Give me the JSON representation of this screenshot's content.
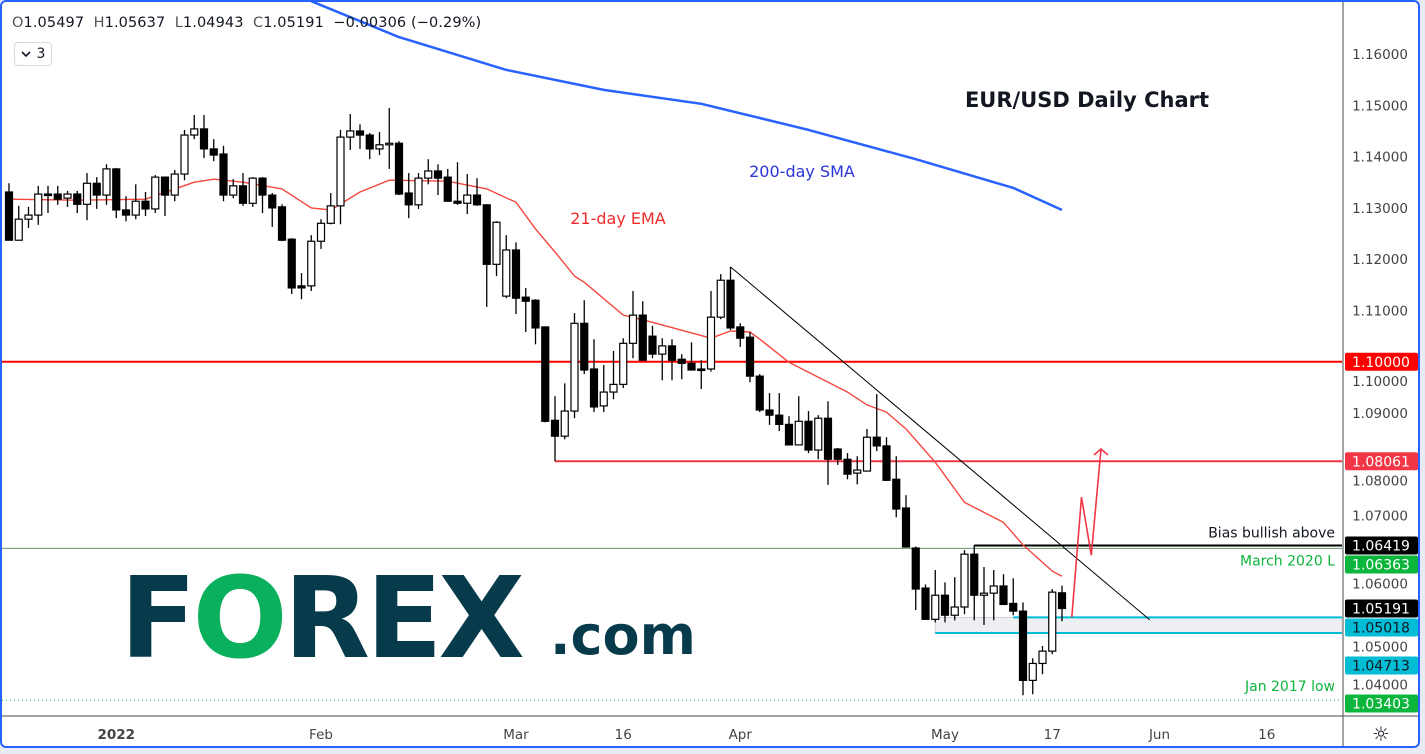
{
  "legend": {
    "open_label": "O",
    "open": "1.05497",
    "high_label": "H",
    "high": "1.05637",
    "low_label": "L",
    "low": "1.04943",
    "close_label": "C",
    "close": "1.05191",
    "change": "−0.00306 (−0.29%)"
  },
  "indicators_toggle": {
    "icon": "chevron-down-icon",
    "count": "3"
  },
  "settings_icon": "gear-icon",
  "logo": {
    "text_left": "F",
    "text_o": "O",
    "text_right": "REX",
    "suffix": ".com",
    "dark_color": "#073b4c",
    "green_color": "#0ab05c"
  },
  "chart_data": {
    "type": "candlestick",
    "title": "EUR/USD Daily Chart",
    "ylim": [
      1.03,
      1.17
    ],
    "y_ticks": [
      "1.04000",
      "1.05000",
      "1.06000",
      "1.07000",
      "1.08000",
      "1.09000",
      "1.10000",
      "1.11000",
      "1.12000",
      "1.13000",
      "1.14000",
      "1.15000",
      "1.16000"
    ],
    "x_ticks": [
      {
        "label": "2022",
        "date": "2022-01-03"
      },
      {
        "label": "Feb",
        "date": "2022-02-01"
      },
      {
        "label": "Mar",
        "date": "2022-03-01"
      },
      {
        "label": "16",
        "date": "2022-03-16"
      },
      {
        "label": "Apr",
        "date": "2022-04-01"
      },
      {
        "label": "May",
        "date": "2022-05-02"
      },
      {
        "label": "17",
        "date": "2022-05-17"
      },
      {
        "label": "Jun",
        "date": "2022-06-01"
      },
      {
        "label": "16",
        "date": "2022-06-16"
      }
    ],
    "up_color": "#ffffff",
    "down_color": "#000000",
    "candles_columns": [
      "date",
      "open",
      "high",
      "low",
      "close"
    ],
    "candles": [
      [
        "2021-12-17",
        1.1331,
        1.1348,
        1.1237,
        1.1237
      ],
      [
        "2021-12-20",
        1.1237,
        1.1304,
        1.1237,
        1.1278
      ],
      [
        "2021-12-21",
        1.1278,
        1.1302,
        1.1261,
        1.1286
      ],
      [
        "2021-12-22",
        1.1286,
        1.1343,
        1.1267,
        1.1327
      ],
      [
        "2021-12-23",
        1.1327,
        1.1343,
        1.129,
        1.1326
      ],
      [
        "2021-12-24",
        1.1327,
        1.1343,
        1.1306,
        1.1317
      ],
      [
        "2021-12-27",
        1.1319,
        1.1333,
        1.1302,
        1.1327
      ],
      [
        "2021-12-28",
        1.1327,
        1.1333,
        1.129,
        1.1307
      ],
      [
        "2021-12-29",
        1.1307,
        1.1368,
        1.1276,
        1.1348
      ],
      [
        "2021-12-30",
        1.1348,
        1.136,
        1.1298,
        1.1325
      ],
      [
        "2021-12-31",
        1.1325,
        1.1385,
        1.1306,
        1.1376
      ],
      [
        "2022-01-03",
        1.1376,
        1.1378,
        1.128,
        1.1296
      ],
      [
        "2022-01-04",
        1.1296,
        1.1323,
        1.1274,
        1.1286
      ],
      [
        "2022-01-05",
        1.1286,
        1.1346,
        1.1278,
        1.1313
      ],
      [
        "2022-01-06",
        1.1313,
        1.1331,
        1.1284,
        1.1298
      ],
      [
        "2022-01-07",
        1.1298,
        1.1364,
        1.129,
        1.136
      ],
      [
        "2022-01-10",
        1.136,
        1.1361,
        1.1284,
        1.1325
      ],
      [
        "2022-01-11",
        1.1325,
        1.1374,
        1.1313,
        1.1366
      ],
      [
        "2022-01-12",
        1.1366,
        1.1452,
        1.1354,
        1.1442
      ],
      [
        "2022-01-13",
        1.1442,
        1.1481,
        1.1434,
        1.1454
      ],
      [
        "2022-01-14",
        1.1454,
        1.1481,
        1.1397,
        1.1415
      ],
      [
        "2022-01-17",
        1.1415,
        1.1434,
        1.1391,
        1.1403
      ],
      [
        "2022-01-18",
        1.1405,
        1.1421,
        1.1313,
        1.1325
      ],
      [
        "2022-01-19",
        1.1325,
        1.1356,
        1.1319,
        1.1343
      ],
      [
        "2022-01-20",
        1.1343,
        1.1368,
        1.1304,
        1.1309
      ],
      [
        "2022-01-21",
        1.1309,
        1.136,
        1.1302,
        1.1358
      ],
      [
        "2022-01-24",
        1.1358,
        1.136,
        1.129,
        1.1325
      ],
      [
        "2022-01-25",
        1.1325,
        1.1329,
        1.1263,
        1.13
      ],
      [
        "2022-01-26",
        1.1302,
        1.1307,
        1.1235,
        1.1237
      ],
      [
        "2022-01-27",
        1.1239,
        1.1241,
        1.1132,
        1.1144
      ],
      [
        "2022-01-28",
        1.1148,
        1.1173,
        1.1122,
        1.1144
      ],
      [
        "2022-01-31",
        1.1148,
        1.1247,
        1.1138,
        1.1235
      ],
      [
        "2022-02-01",
        1.1235,
        1.1278,
        1.122,
        1.127
      ],
      [
        "2022-02-02",
        1.127,
        1.1329,
        1.1268,
        1.1304
      ],
      [
        "2022-02-03",
        1.1304,
        1.1452,
        1.1268,
        1.1438
      ],
      [
        "2022-02-04",
        1.1438,
        1.1483,
        1.1413,
        1.145
      ],
      [
        "2022-02-07",
        1.145,
        1.1463,
        1.1415,
        1.1442
      ],
      [
        "2022-02-08",
        1.1442,
        1.1446,
        1.1395,
        1.1415
      ],
      [
        "2022-02-09",
        1.1415,
        1.1448,
        1.1403,
        1.1423
      ],
      [
        "2022-02-10",
        1.1423,
        1.1495,
        1.1376,
        1.1426
      ],
      [
        "2022-02-11",
        1.1426,
        1.143,
        1.1325,
        1.1327
      ],
      [
        "2022-02-14",
        1.1329,
        1.1368,
        1.128,
        1.1306
      ],
      [
        "2022-02-15",
        1.1306,
        1.1368,
        1.1298,
        1.1358
      ],
      [
        "2022-02-16",
        1.1358,
        1.1395,
        1.1346,
        1.1372
      ],
      [
        "2022-02-17",
        1.1372,
        1.1385,
        1.1325,
        1.1358
      ],
      [
        "2022-02-18",
        1.136,
        1.1376,
        1.1312,
        1.1313
      ],
      [
        "2022-02-21",
        1.1313,
        1.1389,
        1.1306,
        1.1309
      ],
      [
        "2022-02-22",
        1.1309,
        1.1366,
        1.1288,
        1.1325
      ],
      [
        "2022-02-23",
        1.1325,
        1.1358,
        1.1304,
        1.1306
      ],
      [
        "2022-02-24",
        1.1306,
        1.1307,
        1.1107,
        1.119
      ],
      [
        "2022-02-25",
        1.119,
        1.1274,
        1.1167,
        1.1272
      ],
      [
        "2022-02-28",
        1.1128,
        1.1247,
        1.1124,
        1.1218
      ],
      [
        "2022-03-01",
        1.1218,
        1.1233,
        1.1093,
        1.1124
      ],
      [
        "2022-03-02",
        1.1126,
        1.1144,
        1.1058,
        1.1118
      ],
      [
        "2022-03-03",
        1.112,
        1.1122,
        1.1034,
        1.1066
      ],
      [
        "2022-03-04",
        1.1068,
        1.1068,
        1.0882,
        1.0884
      ],
      [
        "2022-03-07",
        1.0886,
        1.0933,
        1.0806,
        1.0855
      ],
      [
        "2022-03-08",
        1.0855,
        1.0958,
        1.0849,
        1.0904
      ],
      [
        "2022-03-09",
        1.0904,
        1.1095,
        1.089,
        1.1075
      ],
      [
        "2022-03-10",
        1.1075,
        1.112,
        1.0976,
        1.0984
      ],
      [
        "2022-03-11",
        1.0986,
        1.1044,
        1.0902,
        1.0912
      ],
      [
        "2022-03-14",
        1.0914,
        1.0994,
        1.0902,
        1.0941
      ],
      [
        "2022-03-15",
        1.0941,
        1.1021,
        1.0927,
        1.0956
      ],
      [
        "2022-03-16",
        1.0956,
        1.1046,
        1.0949,
        1.1036
      ],
      [
        "2022-03-17",
        1.1036,
        1.1138,
        1.1007,
        1.1091
      ],
      [
        "2022-03-18",
        1.1091,
        1.1118,
        1.1003,
        1.1003
      ],
      [
        "2022-03-21",
        1.105,
        1.107,
        1.1007,
        1.1015
      ],
      [
        "2022-03-22",
        1.1015,
        1.1046,
        1.0964,
        1.1031
      ],
      [
        "2022-03-23",
        1.1031,
        1.1044,
        1.0964,
        1.1003
      ],
      [
        "2022-03-24",
        1.1005,
        1.1015,
        1.0966,
        1.0997
      ],
      [
        "2022-03-25",
        1.0997,
        1.1038,
        1.0983,
        1.0984
      ],
      [
        "2022-03-28",
        1.0986,
        1.1003,
        1.0947,
        1.0984
      ],
      [
        "2022-03-29",
        1.0986,
        1.1138,
        1.0981,
        1.1087
      ],
      [
        "2022-03-30",
        1.1087,
        1.1171,
        1.1083,
        1.1159
      ],
      [
        "2022-03-31",
        1.1159,
        1.1185,
        1.1062,
        1.1066
      ],
      [
        "2022-04-01",
        1.1068,
        1.1075,
        1.1029,
        1.1046
      ],
      [
        "2022-04-04",
        1.1048,
        1.1058,
        1.096,
        1.0972
      ],
      [
        "2022-04-05",
        1.0972,
        1.0976,
        1.0902,
        1.0906
      ],
      [
        "2022-04-06",
        1.0906,
        1.0939,
        1.0877,
        1.0896
      ],
      [
        "2022-04-07",
        1.0896,
        1.0939,
        1.0865,
        1.0878
      ],
      [
        "2022-04-08",
        1.0878,
        1.0894,
        1.0837,
        1.0838
      ],
      [
        "2022-04-11",
        1.0838,
        1.0933,
        1.0837,
        1.0884
      ],
      [
        "2022-04-12",
        1.0884,
        1.0904,
        1.0822,
        1.0828
      ],
      [
        "2022-04-13",
        1.0828,
        1.0896,
        1.081,
        1.089
      ],
      [
        "2022-04-14",
        1.089,
        1.0923,
        1.076,
        1.081
      ],
      [
        "2022-04-15",
        1.083,
        1.0832,
        1.0799,
        1.081
      ],
      [
        "2022-04-18",
        1.081,
        1.0822,
        1.0771,
        1.0781
      ],
      [
        "2022-04-19",
        1.0783,
        1.0816,
        1.0761,
        1.0789
      ],
      [
        "2022-04-20",
        1.0787,
        1.0869,
        1.0786,
        1.0853
      ],
      [
        "2022-04-21",
        1.0853,
        1.0937,
        1.0826,
        1.0836
      ],
      [
        "2022-04-22",
        1.0836,
        1.0853,
        1.0768,
        1.0769
      ],
      [
        "2022-04-25",
        1.0771,
        1.0816,
        1.0697,
        1.0713
      ],
      [
        "2022-04-26",
        1.0715,
        1.074,
        1.0638,
        1.0639
      ],
      [
        "2022-04-27",
        1.0637,
        1.064,
        1.0516,
        1.0557
      ],
      [
        "2022-04-28",
        1.0559,
        1.0566,
        1.0497,
        1.0498
      ],
      [
        "2022-04-29",
        1.0498,
        1.0594,
        1.0492,
        1.0545
      ],
      [
        "2022-05-02",
        1.0545,
        1.057,
        1.0492,
        1.0506
      ],
      [
        "2022-05-03",
        1.0506,
        1.058,
        1.0496,
        1.0522
      ],
      [
        "2022-05-04",
        1.0522,
        1.0633,
        1.0508,
        1.0625
      ],
      [
        "2022-05-05",
        1.0625,
        1.0643,
        1.0496,
        1.0545
      ],
      [
        "2022-05-06",
        1.0545,
        1.06,
        1.0487,
        1.0549
      ],
      [
        "2022-05-09",
        1.0549,
        1.0594,
        1.0496,
        1.0563
      ],
      [
        "2022-05-10",
        1.0563,
        1.0586,
        1.0526,
        1.0527
      ],
      [
        "2022-05-11",
        1.0529,
        1.0578,
        1.0506,
        1.0514
      ],
      [
        "2022-05-12",
        1.0514,
        1.0531,
        1.035,
        1.0379
      ],
      [
        "2022-05-13",
        1.0379,
        1.0422,
        1.0352,
        1.0412
      ],
      [
        "2022-05-16",
        1.0412,
        1.0446,
        1.0391,
        1.0436
      ],
      [
        "2022-05-17",
        1.0436,
        1.0557,
        1.043,
        1.0551
      ],
      [
        "2022-05-18",
        1.05497,
        1.05637,
        1.04943,
        1.05191
      ]
    ],
    "overlays": [
      {
        "name": "21-day EMA",
        "color": "#f4473d",
        "points": [
          [
            "2021-12-17",
            1.1317
          ],
          [
            "2021-12-28",
            1.1315
          ],
          [
            "2022-01-06",
            1.1317
          ],
          [
            "2022-01-13",
            1.135
          ],
          [
            "2022-01-17",
            1.1356
          ],
          [
            "2022-01-20",
            1.135
          ],
          [
            "2022-01-26",
            1.1337
          ],
          [
            "2022-01-31",
            1.13
          ],
          [
            "2022-02-02",
            1.1296
          ],
          [
            "2022-02-07",
            1.1331
          ],
          [
            "2022-02-10",
            1.1354
          ],
          [
            "2022-02-18",
            1.1352
          ],
          [
            "2022-02-24",
            1.1337
          ],
          [
            "2022-03-01",
            1.1311
          ],
          [
            "2022-03-03",
            1.1259
          ],
          [
            "2022-03-07",
            1.1214
          ],
          [
            "2022-03-09",
            1.1167
          ],
          [
            "2022-03-10",
            1.1155
          ],
          [
            "2022-03-16",
            1.1091
          ],
          [
            "2022-03-21",
            1.1077
          ],
          [
            "2022-03-29",
            1.1046
          ],
          [
            "2022-03-31",
            1.106
          ],
          [
            "2022-04-04",
            1.1058
          ],
          [
            "2022-04-05",
            1.1044
          ],
          [
            "2022-04-08",
            1.0999
          ],
          [
            "2022-04-13",
            1.097
          ],
          [
            "2022-04-18",
            1.0941
          ],
          [
            "2022-04-20",
            1.0916
          ],
          [
            "2022-04-22",
            1.0902
          ],
          [
            "2022-04-26",
            1.0869
          ],
          [
            "2022-04-29",
            1.0804
          ],
          [
            "2022-05-04",
            1.0726
          ],
          [
            "2022-05-10",
            1.0687
          ],
          [
            "2022-05-12",
            1.0643
          ],
          [
            "2022-05-17",
            1.0592
          ],
          [
            "2022-05-18",
            1.0582
          ]
        ]
      },
      {
        "name": "200-day SMA",
        "color": "#2962ff",
        "points": [
          [
            "2022-01-31",
            1.1703
          ],
          [
            "2022-02-11",
            1.1633
          ],
          [
            "2022-02-28",
            1.1569
          ],
          [
            "2022-03-14",
            1.153
          ],
          [
            "2022-03-28",
            1.1503
          ],
          [
            "2022-04-12",
            1.1452
          ],
          [
            "2022-04-27",
            1.1395
          ],
          [
            "2022-05-11",
            1.1339
          ],
          [
            "2022-05-18",
            1.1296
          ]
        ]
      }
    ],
    "annotations": {
      "title": "EUR/USD Daily Chart",
      "sma_label": "200-day SMA",
      "ema_label": "21-day EMA",
      "bias_label": "Bias bullish above",
      "march_label": "March 2020 L",
      "jan_label": "Jan 2017 low"
    },
    "levels": [
      {
        "price": 1.1,
        "label": "1.10000",
        "color": "#ff0000",
        "from": "full"
      },
      {
        "price": 1.08061,
        "label": "1.08061",
        "color": "#f23645",
        "from": "2022-03-07"
      },
      {
        "price": 1.06419,
        "label": "1.06419",
        "color": "#000000",
        "from": "2022-05-05"
      },
      {
        "price": 1.06363,
        "label": "1.06363",
        "color": "#089b3a",
        "from": "full"
      },
      {
        "price": 1.05018,
        "label": "1.05018",
        "color": "#00bcd4",
        "from": "2022-05-11"
      },
      {
        "price": 1.04713,
        "label": "1.04713",
        "color": "#00bcd4",
        "from": "2022-04-29"
      },
      {
        "price": 1.03403,
        "label": "1.03403",
        "color": "#0cb53c",
        "from": "full",
        "style": "dotted"
      }
    ],
    "support_zone": {
      "top": 1.05018,
      "bottom": 1.04713,
      "from": "2022-04-29",
      "fill": "#eeeff3"
    },
    "last_price": {
      "price": 1.05191,
      "label": "1.05191",
      "color": "#000000"
    },
    "trendline": {
      "from": [
        "2022-03-31",
        1.1185
      ],
      "to": [
        "2022-05-31",
        1.0497
      ],
      "color": "#000000"
    },
    "projection_arrow": {
      "color": "#f23645",
      "points": [
        [
          "2022-05-19",
          1.0502
        ],
        [
          "2022-05-20",
          1.0736
        ],
        [
          "2022-05-23",
          1.0623
        ],
        [
          "2022-05-24",
          1.083
        ]
      ]
    }
  }
}
